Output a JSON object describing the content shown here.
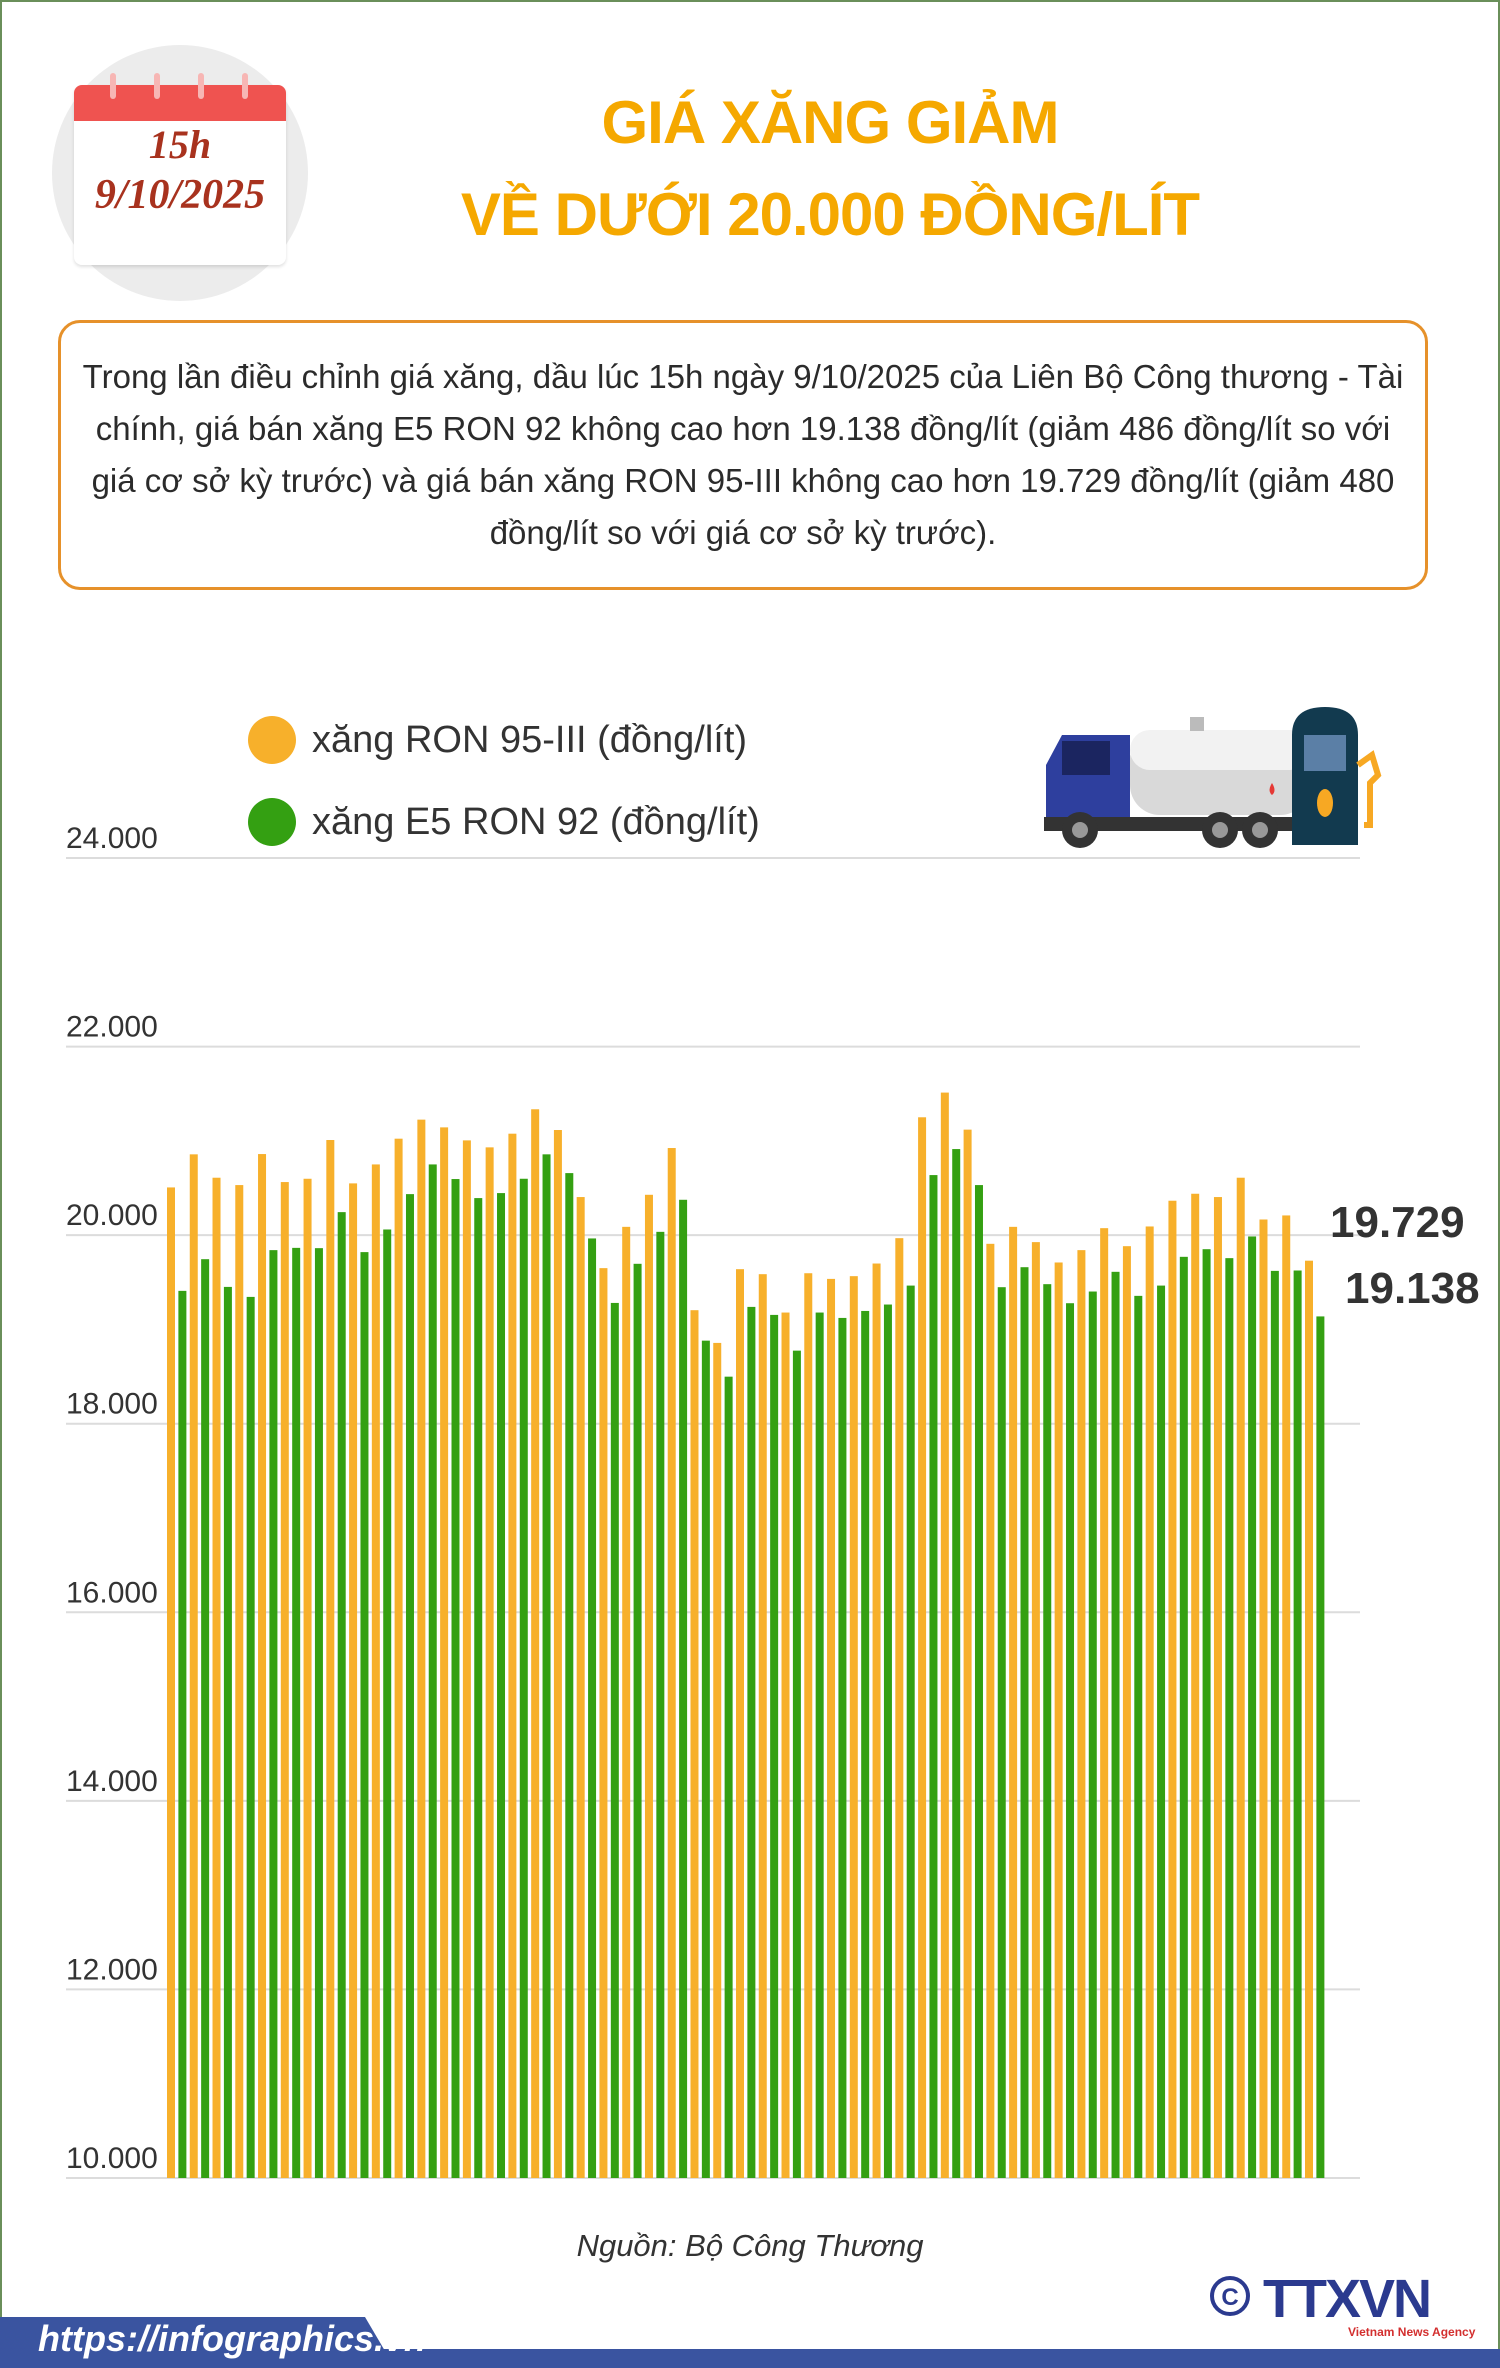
{
  "calendar": {
    "time": "15h",
    "date": "9/10/2025"
  },
  "header": {
    "title_line1": "GIÁ XĂNG GIẢM",
    "title_line2": "VỀ DƯỚI 20.000 ĐỒNG/LÍT"
  },
  "summary": "Trong lần điều chỉnh giá xăng, dầu lúc 15h ngày 9/10/2025 của Liên Bộ Công thương - Tài chính, giá bán xăng E5 RON 92 không cao hơn 19.138 đồng/lít (giảm 486 đồng/lít so với giá cơ sở kỳ trước) và giá bán xăng RON 95-III không cao hơn 19.729 đồng/lít (giảm 480 đồng/lít so với giá cơ sở kỳ trước).",
  "icons": [
    "fuel-truck-icon",
    "fuel-pump-icon",
    "calendar-icon",
    "copyright-icon"
  ],
  "colors": {
    "ron95": "#f7b02b",
    "e5": "#34a012",
    "title": "#f5a800",
    "border": "#e6912a",
    "footer": "#3a54a0"
  },
  "chart_data": {
    "type": "bar",
    "ylim": [
      10000,
      24000
    ],
    "yticks": [
      "10.000",
      "12.000",
      "14.000",
      "16.000",
      "18.000",
      "20.000",
      "22.000",
      "24.000"
    ],
    "grid": true,
    "legend_placement": "top-left",
    "series": [
      {
        "name": "xăng RON 95-III (đồng/lít)",
        "color": "#f7b02b",
        "values": [
          20506,
          20857,
          20609,
          20531,
          20860,
          20563,
          20598,
          21009,
          20549,
          20750,
          21023,
          21225,
          21143,
          21005,
          20931,
          21076,
          21335,
          21115,
          20404,
          19650,
          20088,
          20428,
          20924,
          19204,
          18857,
          19639,
          19586,
          19179,
          19596,
          19536,
          19565,
          19699,
          19968,
          21250,
          21512,
          21119,
          19908,
          20088,
          19926,
          19710,
          19841,
          20074,
          19883,
          20092,
          20365,
          20439,
          20404,
          20609,
          20166,
          20209,
          19729
        ]
      },
      {
        "name": "xăng E5 RON 92 (đồng/lít)",
        "color": "#34a012",
        "values": [
          19409,
          19745,
          19451,
          19345,
          19841,
          19865,
          19862,
          20244,
          19820,
          20060,
          20435,
          20750,
          20595,
          20393,
          20446,
          20598,
          20857,
          20658,
          19965,
          19281,
          19696,
          20035,
          20375,
          18881,
          18499,
          19239,
          19154,
          18775,
          19179,
          19122,
          19196,
          19264,
          19465,
          20637,
          20913,
          20531,
          19448,
          19660,
          19480,
          19278,
          19402,
          19611,
          19356,
          19465,
          19770,
          19851,
          19756,
          19986,
          19621,
          19625,
          19138
        ]
      }
    ],
    "annotations": [
      "19.729",
      "19.138"
    ]
  },
  "source": "Nguồn: Bộ Công Thương",
  "footer": {
    "url": "https://infographics.vn",
    "logo": "TTXVN",
    "logo_sub": "Vietnam News Agency"
  }
}
